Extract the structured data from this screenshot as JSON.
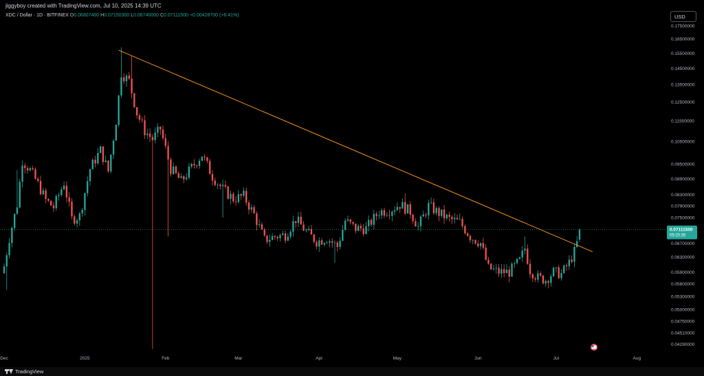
{
  "header": {
    "created_by": "jiggyboy created with TradingView.com, Jul 10, 2025 14:39 UTC",
    "symbol": "XDC / Dollar · 1D · BITFINEX",
    "o_label": "O",
    "o_value": "0.06807400",
    "h_label": "H",
    "h_value": "0.07150300",
    "l_label": "L",
    "l_value": "0.06740000",
    "c_label": "C",
    "c_value": "0.07111500",
    "change": "+0.00428700 (+6.41%)"
  },
  "currency_button": "USD",
  "footer": {
    "brand": "TradingView"
  },
  "colors": {
    "up": "#26a69a",
    "down": "#ef5350",
    "trendline": "#f7931a",
    "price_label": "#26a69a",
    "background": "#000000"
  },
  "chart_data": {
    "type": "candlestick",
    "title": "XDC / Dollar · 1D · BITFINEX",
    "ylabel": "",
    "y_scale": "log",
    "ylim": [
      0.0412,
      0.18
    ],
    "xlim": [
      "2024-12-01",
      "2025-08-12"
    ],
    "y_ticks": [
      "0.17500000",
      "0.16500000",
      "0.15500000",
      "0.14500000",
      "0.13500000",
      "0.12500000",
      "0.11500000",
      "0.10500000",
      "0.09500000",
      "0.08900000",
      "0.08300000",
      "0.07900000",
      "0.07500000",
      "0.06700000",
      "0.06300000",
      "0.05900000",
      "0.05600000",
      "0.05300000",
      "0.05000000",
      "0.04750000",
      "0.04510000",
      "0.04290000"
    ],
    "x_ticks": [
      {
        "date": "2024-12-01",
        "label": "Dec"
      },
      {
        "date": "2025-01-01",
        "label": "2025"
      },
      {
        "date": "2025-02-01",
        "label": "Feb"
      },
      {
        "date": "2025-03-01",
        "label": "Mar"
      },
      {
        "date": "2025-04-01",
        "label": "Apr"
      },
      {
        "date": "2025-05-01",
        "label": "May"
      },
      {
        "date": "2025-06-01",
        "label": "Jun"
      },
      {
        "date": "2025-07-01",
        "label": "Jul"
      },
      {
        "date": "2025-08-01",
        "label": "Aug"
      }
    ],
    "last_price": "0.07111500",
    "countdown": "09:20:35",
    "trendline": [
      {
        "date": "2025-01-14",
        "price": 0.157
      },
      {
        "date": "2025-07-15",
        "price": 0.0645
      }
    ],
    "anchors": [
      {
        "date": "2024-12-01",
        "close": 0.0605
      },
      {
        "date": "2024-12-03",
        "close": 0.0685
      },
      {
        "date": "2024-12-06",
        "close": 0.0795
      },
      {
        "date": "2024-12-08",
        "close": 0.0965
      },
      {
        "date": "2024-12-11",
        "close": 0.0925
      },
      {
        "date": "2024-12-14",
        "close": 0.087
      },
      {
        "date": "2024-12-17",
        "close": 0.081
      },
      {
        "date": "2024-12-20",
        "close": 0.0785
      },
      {
        "date": "2024-12-24",
        "close": 0.0875
      },
      {
        "date": "2024-12-27",
        "close": 0.0745
      },
      {
        "date": "2024-12-30",
        "close": 0.0755
      },
      {
        "date": "2025-01-03",
        "close": 0.093
      },
      {
        "date": "2025-01-07",
        "close": 0.101
      },
      {
        "date": "2025-01-10",
        "close": 0.092
      },
      {
        "date": "2025-01-13",
        "close": 0.115
      },
      {
        "date": "2025-01-15",
        "close": 0.142
      },
      {
        "date": "2025-01-18",
        "close": 0.137
      },
      {
        "date": "2025-01-21",
        "close": 0.119
      },
      {
        "date": "2025-01-24",
        "close": 0.11
      },
      {
        "date": "2025-01-27",
        "close": 0.106
      },
      {
        "date": "2025-01-30",
        "close": 0.111
      },
      {
        "date": "2025-02-03",
        "close": 0.093
      },
      {
        "date": "2025-02-07",
        "close": 0.088
      },
      {
        "date": "2025-02-11",
        "close": 0.0935
      },
      {
        "date": "2025-02-15",
        "close": 0.099
      },
      {
        "date": "2025-02-19",
        "close": 0.09
      },
      {
        "date": "2025-02-23",
        "close": 0.085
      },
      {
        "date": "2025-02-27",
        "close": 0.0815
      },
      {
        "date": "2025-03-03",
        "close": 0.0825
      },
      {
        "date": "2025-03-07",
        "close": 0.076
      },
      {
        "date": "2025-03-11",
        "close": 0.068
      },
      {
        "date": "2025-03-15",
        "close": 0.069
      },
      {
        "date": "2025-03-19",
        "close": 0.0695
      },
      {
        "date": "2025-03-23",
        "close": 0.0745
      },
      {
        "date": "2025-03-27",
        "close": 0.0705
      },
      {
        "date": "2025-03-31",
        "close": 0.0675
      },
      {
        "date": "2025-04-04",
        "close": 0.0685
      },
      {
        "date": "2025-04-08",
        "close": 0.066
      },
      {
        "date": "2025-04-11",
        "close": 0.074
      },
      {
        "date": "2025-04-15",
        "close": 0.0715
      },
      {
        "date": "2025-04-19",
        "close": 0.0715
      },
      {
        "date": "2025-04-24",
        "close": 0.077
      },
      {
        "date": "2025-04-28",
        "close": 0.0775
      },
      {
        "date": "2025-05-02",
        "close": 0.0795
      },
      {
        "date": "2025-05-06",
        "close": 0.077
      },
      {
        "date": "2025-05-09",
        "close": 0.072
      },
      {
        "date": "2025-05-13",
        "close": 0.079
      },
      {
        "date": "2025-05-17",
        "close": 0.0765
      },
      {
        "date": "2025-05-21",
        "close": 0.0745
      },
      {
        "date": "2025-05-25",
        "close": 0.0735
      },
      {
        "date": "2025-05-29",
        "close": 0.069
      },
      {
        "date": "2025-06-02",
        "close": 0.067
      },
      {
        "date": "2025-06-05",
        "close": 0.06
      },
      {
        "date": "2025-06-09",
        "close": 0.059
      },
      {
        "date": "2025-06-13",
        "close": 0.059
      },
      {
        "date": "2025-06-17",
        "close": 0.062
      },
      {
        "date": "2025-06-19",
        "close": 0.0655
      },
      {
        "date": "2025-06-21",
        "close": 0.0595
      },
      {
        "date": "2025-06-24",
        "close": 0.0575
      },
      {
        "date": "2025-06-27",
        "close": 0.057
      },
      {
        "date": "2025-06-30",
        "close": 0.059
      },
      {
        "date": "2025-07-03",
        "close": 0.0585
      },
      {
        "date": "2025-07-06",
        "close": 0.0615
      },
      {
        "date": "2025-07-08",
        "close": 0.0645
      },
      {
        "date": "2025-07-09",
        "close": 0.067
      },
      {
        "date": "2025-07-10",
        "close": 0.071115
      }
    ],
    "spikes": [
      {
        "date": "2024-12-02",
        "low": 0.0545
      },
      {
        "date": "2024-12-06",
        "high": 0.0925
      },
      {
        "date": "2025-01-15",
        "high": 0.159
      },
      {
        "date": "2025-01-19",
        "high": 0.153
      },
      {
        "date": "2025-01-27",
        "low": 0.042
      },
      {
        "date": "2025-02-02",
        "low": 0.069
      },
      {
        "date": "2025-02-23",
        "low": 0.075
      },
      {
        "date": "2025-04-07",
        "low": 0.0615
      },
      {
        "date": "2025-05-04",
        "high": 0.0835
      },
      {
        "date": "2025-06-19",
        "high": 0.069
      }
    ]
  }
}
